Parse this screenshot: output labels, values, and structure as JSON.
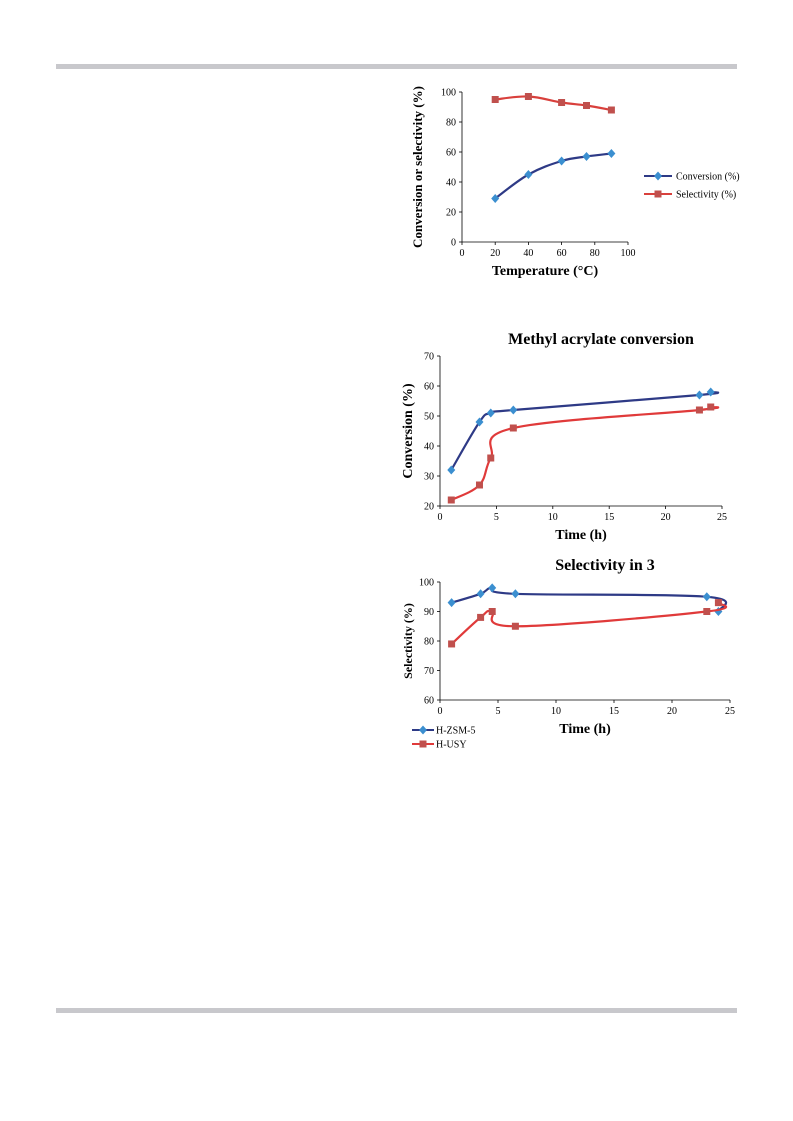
{
  "chart_data": [
    {
      "type": "line",
      "title": "",
      "xlabel": "Temperature (°C)",
      "ylabel": "Conversion or selectivity (%)",
      "xlim": [
        0,
        100
      ],
      "ylim": [
        0,
        100
      ],
      "xticks": [
        0,
        20,
        40,
        60,
        80,
        100
      ],
      "yticks": [
        0,
        20,
        40,
        60,
        80,
        100
      ],
      "legend_position": "right",
      "series": [
        {
          "name": "Conversion (%)",
          "color": "#2e3a86",
          "marker": "diamond",
          "marker_color": "#3b8fd0",
          "x": [
            20,
            40,
            60,
            75,
            90
          ],
          "y": [
            29,
            45,
            54,
            57,
            59
          ]
        },
        {
          "name": "Selectivity (%)",
          "color": "#d9403c",
          "marker": "square",
          "marker_color": "#c0504d",
          "x": [
            20,
            40,
            60,
            75,
            90
          ],
          "y": [
            95,
            97,
            93,
            91,
            88
          ]
        }
      ]
    },
    {
      "type": "line",
      "title": "Methyl acrylate conversion",
      "xlabel": "Time (h)",
      "ylabel": "Conversion (%)",
      "xlim": [
        0,
        25
      ],
      "ylim": [
        20,
        70
      ],
      "xticks": [
        0,
        5,
        10,
        15,
        20,
        25
      ],
      "yticks": [
        20,
        30,
        40,
        50,
        60,
        70
      ],
      "series": [
        {
          "name": "H-ZSM-5",
          "color": "#2e3a86",
          "marker": "diamond",
          "marker_color": "#3b8fd0",
          "x": [
            1,
            3.5,
            4.5,
            6.5,
            23,
            24
          ],
          "y": [
            32,
            48,
            51,
            52,
            57,
            58
          ]
        },
        {
          "name": "H-USY",
          "color": "#e03a3a",
          "marker": "square",
          "marker_color": "#c0504d",
          "x": [
            1,
            3.5,
            4.5,
            6.5,
            23,
            24
          ],
          "y": [
            22,
            27,
            36,
            46,
            52,
            53
          ]
        }
      ]
    },
    {
      "type": "line",
      "title": "Selectivity in 3",
      "xlabel": "Time (h)",
      "ylabel": "Selectivity (%)",
      "xlim": [
        0,
        25
      ],
      "ylim": [
        60,
        100
      ],
      "xticks": [
        0,
        5,
        10,
        15,
        20,
        25
      ],
      "yticks": [
        60,
        70,
        80,
        90,
        100
      ],
      "legend_position": "bottom-left",
      "series": [
        {
          "name": "H-ZSM-5",
          "color": "#2e3a86",
          "marker": "diamond",
          "marker_color": "#3b8fd0",
          "x": [
            1,
            3.5,
            4.5,
            6.5,
            23,
            24
          ],
          "y": [
            93,
            96,
            98,
            96,
            95,
            90
          ]
        },
        {
          "name": "H-USY",
          "color": "#e03a3a",
          "marker": "square",
          "marker_color": "#c0504d",
          "x": [
            1,
            3.5,
            4.5,
            6.5,
            23,
            24
          ],
          "y": [
            79,
            88,
            90,
            85,
            90,
            93
          ]
        }
      ]
    }
  ]
}
